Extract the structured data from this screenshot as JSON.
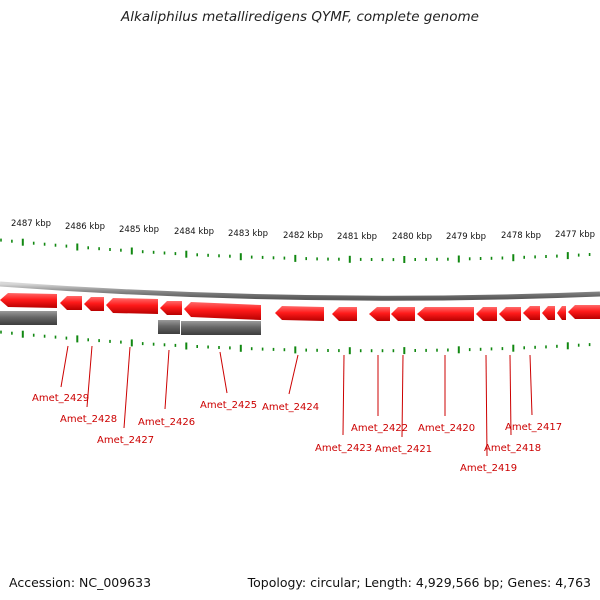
{
  "header": {
    "title": "Alkaliphilus metalliredigens QYMF, complete genome"
  },
  "footer": {
    "accession": "Accession: NC_009633",
    "stats": "Topology: circular; Length: 4,929,566 bp; Genes: 4,763"
  },
  "colors": {
    "forward_gene": "#ff1a1a",
    "reverse_gene": "#666666",
    "tick": "#118811",
    "label": "#cc0000",
    "backbone": "#999999"
  },
  "scale": {
    "unit": "kbp",
    "labels": [
      "2487 kbp",
      "2486 kbp",
      "2485 kbp",
      "2484 kbp",
      "2483 kbp",
      "2482 kbp",
      "2481 kbp",
      "2480 kbp",
      "2479 kbp",
      "2478 kbp",
      "2477 kbp"
    ]
  },
  "genes": [
    {
      "name": "Amet_2429"
    },
    {
      "name": "Amet_2428"
    },
    {
      "name": "Amet_2427"
    },
    {
      "name": "Amet_2426"
    },
    {
      "name": "Amet_2425"
    },
    {
      "name": "Amet_2424"
    },
    {
      "name": "Amet_2423"
    },
    {
      "name": "Amet_2422"
    },
    {
      "name": "Amet_2421"
    },
    {
      "name": "Amet_2420"
    },
    {
      "name": "Amet_2419"
    },
    {
      "name": "Amet_2418"
    },
    {
      "name": "Amet_2417"
    }
  ]
}
